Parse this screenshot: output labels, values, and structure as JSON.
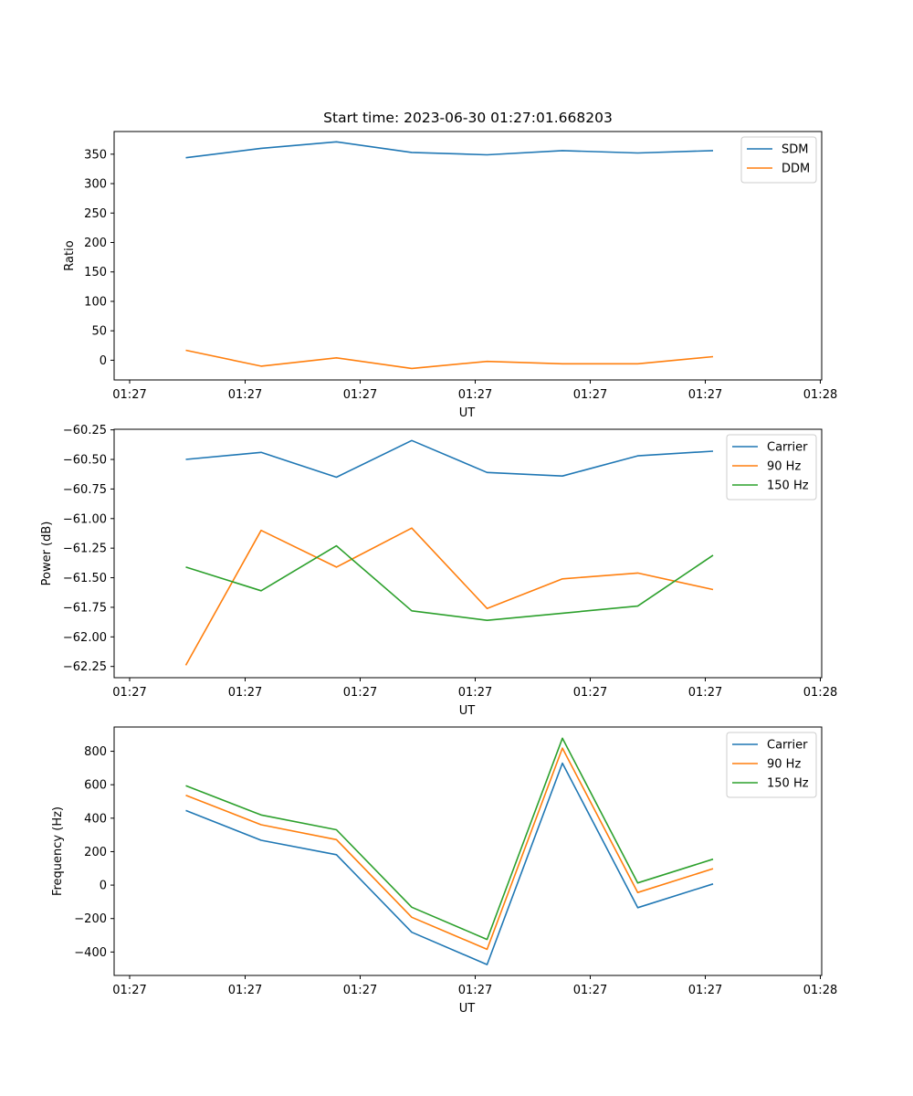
{
  "title": "Start time: 2023-06-30 01:27:01.668203",
  "colors": {
    "blue": "#1f77b4",
    "orange": "#ff7f0e",
    "green": "#2ca02c"
  },
  "chart_data": [
    {
      "type": "line",
      "xlabel": "UT",
      "ylabel": "Ratio",
      "x_tick_labels": [
        "01:27",
        "01:27",
        "01:27",
        "01:27",
        "01:27",
        "01:27",
        "01:28"
      ],
      "y_ticks": [
        0,
        50,
        100,
        150,
        200,
        250,
        300,
        350
      ],
      "y_tick_labels": [
        "0",
        "50",
        "100",
        "150",
        "200",
        "250",
        "300",
        "350"
      ],
      "ylim": [
        -33.5,
        388.5
      ],
      "grid": false,
      "legend": "top-right",
      "series": [
        {
          "name": "SDM",
          "color": "#1f77b4",
          "values": [
            344,
            360,
            371,
            353,
            349,
            356,
            352,
            356
          ]
        },
        {
          "name": "DDM",
          "color": "#ff7f0e",
          "values": [
            17,
            -10,
            4,
            -14,
            -2,
            -6,
            -6,
            6
          ]
        }
      ]
    },
    {
      "type": "line",
      "xlabel": "UT",
      "ylabel": "Power (dB)",
      "x_tick_labels": [
        "01:27",
        "01:27",
        "01:27",
        "01:27",
        "01:27",
        "01:27",
        "01:28"
      ],
      "y_ticks": [
        -62.25,
        -62.0,
        -61.75,
        -61.5,
        -61.25,
        -61.0,
        -60.75,
        -60.5,
        -60.25
      ],
      "y_tick_labels": [
        "−62.25",
        "−62.00",
        "−61.75",
        "−61.50",
        "−61.25",
        "−61.00",
        "−60.75",
        "−60.50",
        "−60.25"
      ],
      "ylim": [
        -62.345,
        -60.245
      ],
      "grid": false,
      "legend": "top-right",
      "series": [
        {
          "name": "Carrier",
          "color": "#1f77b4",
          "values": [
            -60.5,
            -60.44,
            -60.65,
            -60.34,
            -60.61,
            -60.64,
            -60.47,
            -60.43
          ]
        },
        {
          "name": "90 Hz",
          "color": "#ff7f0e",
          "values": [
            -62.24,
            -61.1,
            -61.41,
            -61.08,
            -61.76,
            -61.51,
            -61.46,
            -61.6
          ]
        },
        {
          "name": "150 Hz",
          "color": "#2ca02c",
          "values": [
            -61.41,
            -61.61,
            -61.23,
            -61.78,
            -61.86,
            -61.8,
            -61.74,
            -61.31
          ]
        }
      ]
    },
    {
      "type": "line",
      "xlabel": "UT",
      "ylabel": "Frequency (Hz)",
      "x_tick_labels": [
        "01:27",
        "01:27",
        "01:27",
        "01:27",
        "01:27",
        "01:27",
        "01:28"
      ],
      "y_ticks": [
        -400,
        -200,
        0,
        200,
        400,
        600,
        800
      ],
      "y_tick_labels": [
        "−400",
        "−200",
        "0",
        "200",
        "400",
        "600",
        "800"
      ],
      "ylim": [
        -540,
        945
      ],
      "grid": false,
      "legend": "top-right",
      "series": [
        {
          "name": "Carrier",
          "color": "#1f77b4",
          "values": [
            446,
            268,
            182,
            -282,
            -475,
            729,
            -135,
            7
          ]
        },
        {
          "name": "90 Hz",
          "color": "#ff7f0e",
          "values": [
            537,
            361,
            272,
            -192,
            -384,
            819,
            -44,
            98
          ]
        },
        {
          "name": "150 Hz",
          "color": "#2ca02c",
          "values": [
            594,
            419,
            331,
            -132,
            -325,
            878,
            13,
            155
          ]
        }
      ]
    }
  ]
}
